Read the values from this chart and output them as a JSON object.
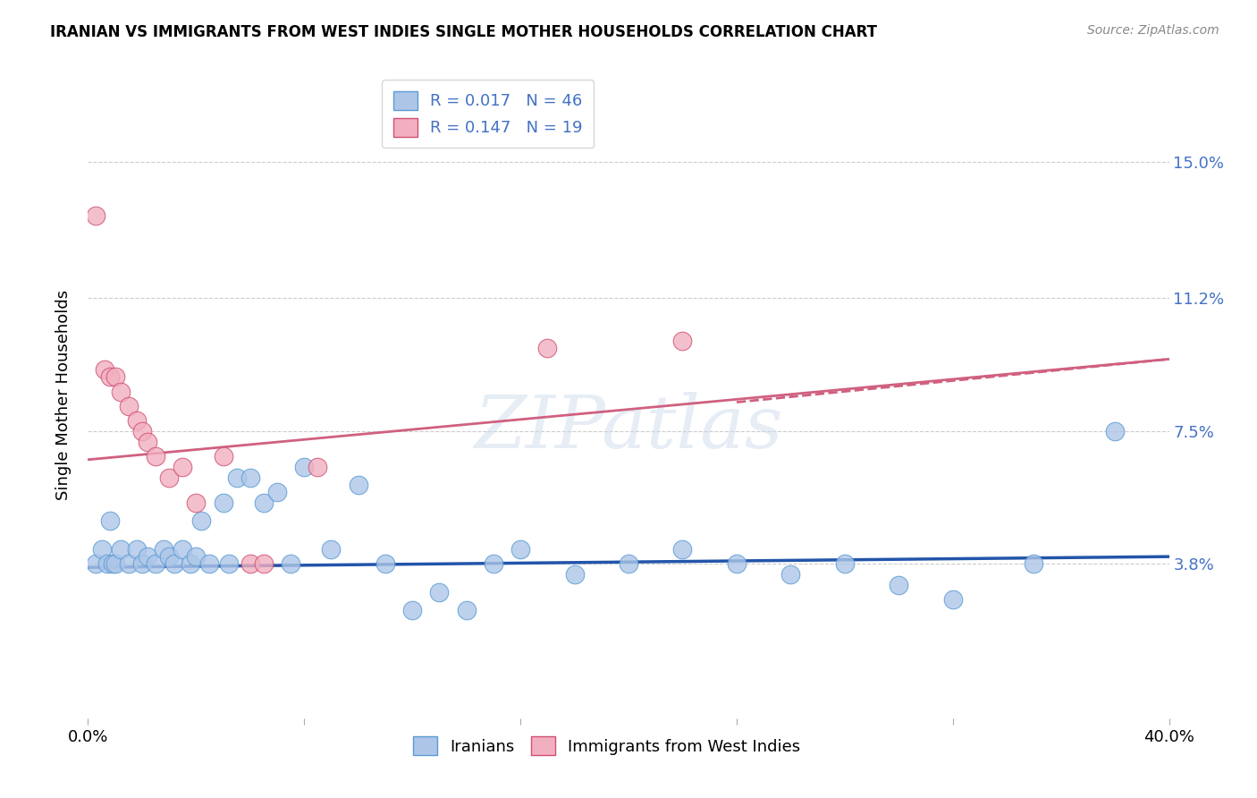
{
  "title": "IRANIAN VS IMMIGRANTS FROM WEST INDIES SINGLE MOTHER HOUSEHOLDS CORRELATION CHART",
  "source": "Source: ZipAtlas.com",
  "ylabel": "Single Mother Households",
  "xlim": [
    0.0,
    0.4
  ],
  "ylim": [
    -0.005,
    0.175
  ],
  "ytick_values": [
    0.0,
    0.038,
    0.075,
    0.112,
    0.15
  ],
  "ytick_labels_right": [
    "3.8%",
    "7.5%",
    "11.2%",
    "15.0%"
  ],
  "ytick_values_right": [
    0.038,
    0.075,
    0.112,
    0.15
  ],
  "xtick_values": [
    0.0,
    0.08,
    0.16,
    0.24,
    0.32,
    0.4
  ],
  "xtick_labels": [
    "0.0%",
    "",
    "",
    "",
    "",
    "40.0%"
  ],
  "background_color": "#ffffff",
  "watermark": "ZIPatlas",
  "iranians_color": "#adc6e8",
  "iranians_edge_color": "#5b9bd5",
  "west_indies_color": "#f2afc0",
  "west_indies_edge_color": "#d05070",
  "trend_iranian_color": "#2255aa",
  "trend_west_indies_color": "#d06080",
  "iranians_x": [
    0.003,
    0.005,
    0.007,
    0.008,
    0.009,
    0.01,
    0.012,
    0.015,
    0.018,
    0.02,
    0.022,
    0.025,
    0.028,
    0.03,
    0.032,
    0.035,
    0.038,
    0.04,
    0.042,
    0.045,
    0.05,
    0.052,
    0.055,
    0.06,
    0.065,
    0.07,
    0.075,
    0.08,
    0.09,
    0.1,
    0.11,
    0.12,
    0.13,
    0.14,
    0.15,
    0.16,
    0.18,
    0.2,
    0.22,
    0.24,
    0.26,
    0.28,
    0.3,
    0.32,
    0.35,
    0.38
  ],
  "iranians_y": [
    0.038,
    0.042,
    0.038,
    0.05,
    0.038,
    0.038,
    0.042,
    0.038,
    0.042,
    0.038,
    0.04,
    0.038,
    0.042,
    0.04,
    0.038,
    0.042,
    0.038,
    0.04,
    0.05,
    0.038,
    0.055,
    0.038,
    0.062,
    0.062,
    0.055,
    0.058,
    0.038,
    0.065,
    0.042,
    0.06,
    0.038,
    0.025,
    0.03,
    0.025,
    0.038,
    0.042,
    0.035,
    0.038,
    0.042,
    0.038,
    0.035,
    0.038,
    0.032,
    0.028,
    0.038,
    0.075
  ],
  "west_indies_x": [
    0.003,
    0.006,
    0.008,
    0.01,
    0.012,
    0.015,
    0.018,
    0.02,
    0.022,
    0.025,
    0.03,
    0.035,
    0.04,
    0.05,
    0.06,
    0.065,
    0.085,
    0.17,
    0.22
  ],
  "west_indies_y": [
    0.135,
    0.092,
    0.09,
    0.09,
    0.086,
    0.082,
    0.078,
    0.075,
    0.072,
    0.068,
    0.062,
    0.065,
    0.055,
    0.068,
    0.038,
    0.038,
    0.065,
    0.098,
    0.1
  ]
}
